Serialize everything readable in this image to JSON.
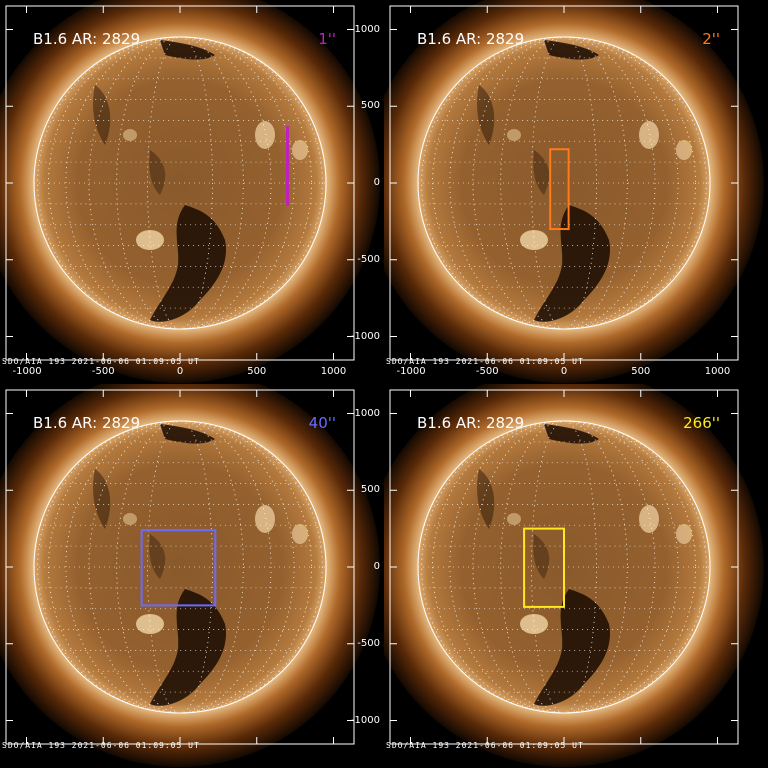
{
  "figure": {
    "panels": [
      {
        "title": "B1.6 AR: 2829",
        "scale_label": "1''",
        "scale_color": "#c020c0",
        "footer": "SDO/AIA 193  2021-06-06 01:09:05 UT",
        "marker": {
          "type": "line",
          "x": 700,
          "y_range": [
            -150,
            370
          ]
        },
        "x_ticks": [
          "-1000",
          "-500",
          "0",
          "500",
          "1000"
        ],
        "y_ticks": [
          "",
          "",
          "",
          "",
          ""
        ]
      },
      {
        "title": "B1.6 AR: 2829",
        "scale_label": "2''",
        "scale_color": "#ff7a1a",
        "footer": "SDO/AIA 193  2021-06-06 01:09:05 UT",
        "marker": {
          "type": "box",
          "x_range": [
            -90,
            30
          ],
          "y_range": [
            -300,
            220
          ]
        },
        "x_ticks": [
          "-1000",
          "-500",
          "0",
          "500",
          "1000"
        ],
        "y_ticks": [
          "1000",
          "500",
          "0",
          "-500",
          "-1000"
        ]
      },
      {
        "title": "B1.6 AR: 2829",
        "scale_label": "40''",
        "scale_color": "#6a6aff",
        "footer": "SDO/AIA 193  2021-06-06 01:09:05 UT",
        "marker": {
          "type": "box",
          "x_range": [
            -250,
            230
          ],
          "y_range": [
            -250,
            240
          ]
        },
        "x_ticks": [
          "",
          "",
          "",
          "",
          ""
        ],
        "y_ticks": [
          "",
          "",
          "",
          "",
          ""
        ]
      },
      {
        "title": "B1.6 AR: 2829",
        "scale_label": "266''",
        "scale_color": "#ffe81a",
        "footer": "SDO/AIA 193  2021-06-06 01:09:05 UT",
        "marker": {
          "type": "box",
          "x_range": [
            -260,
            0
          ],
          "y_range": [
            -260,
            250
          ]
        },
        "x_ticks": [
          "",
          "",
          "",
          "",
          ""
        ],
        "y_ticks": [
          "1000",
          "500",
          "0",
          "-500",
          "-1000"
        ]
      }
    ]
  }
}
